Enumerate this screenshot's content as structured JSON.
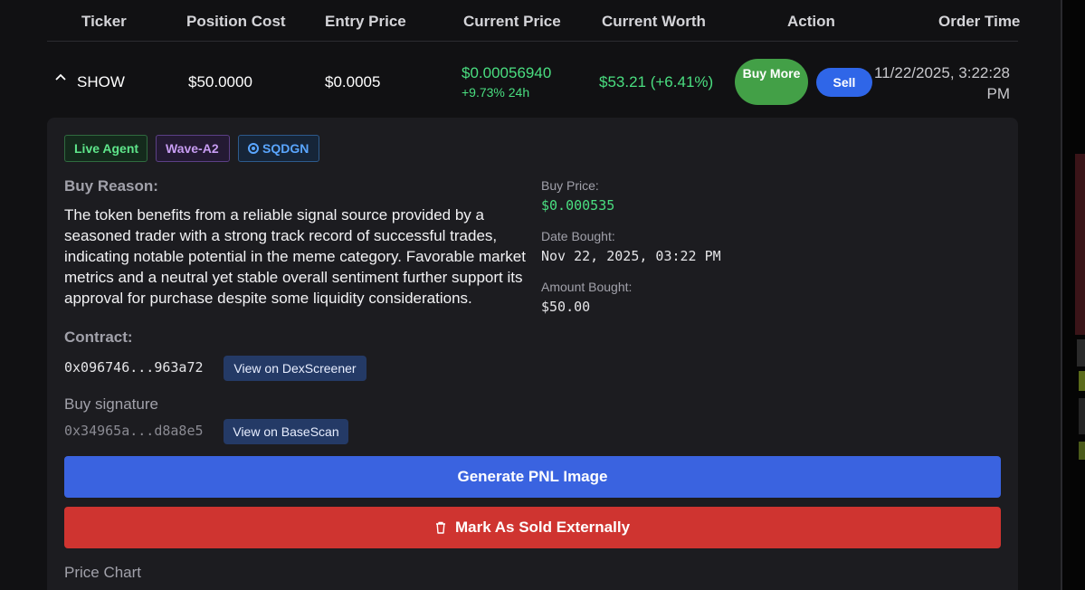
{
  "table": {
    "headers": {
      "ticker": "Ticker",
      "position_cost": "Position Cost",
      "entry_price": "Entry Price",
      "current_price": "Current Price",
      "current_worth": "Current Worth",
      "action": "Action",
      "order_time": "Order Time"
    },
    "row": {
      "ticker": "SHOW",
      "position_cost": "$50.0000",
      "entry_price": "$0.0005",
      "current_price": "$0.00056940",
      "change_24h": "+9.73% 24h",
      "current_worth": "$53.21 (+6.41%)",
      "buy_more_label": "Buy More",
      "sell_label": "Sell",
      "order_time": "11/22/2025, 3:22:28 PM"
    }
  },
  "detail": {
    "badges": {
      "live": "Live Agent",
      "wave": "Wave-A2",
      "sqdgn": "SQDGN"
    },
    "buy_reason_label": "Buy Reason:",
    "buy_reason": "The token benefits from a reliable signal source provided by a seasoned trader with a strong track record of successful trades, indicating notable potential in the meme category. Favorable market metrics and a neutral yet stable overall sentiment further support its approval for purchase despite some liquidity considerations.",
    "buy_price_label": "Buy Price:",
    "buy_price": "$0.000535",
    "date_bought_label": "Date Bought:",
    "date_bought": "Nov 22, 2025, 03:22 PM",
    "amount_bought_label": "Amount Bought:",
    "amount_bought": "$50.00",
    "contract_label": "Contract:",
    "contract": "0x096746...963a72",
    "dexscreener_label": "View on DexScreener",
    "signature_label": "Buy signature",
    "signature": "0x34965a...d8a8e5",
    "basescan_label": "View on BaseScan",
    "pnl_button": "Generate PNL Image",
    "sold_button": "Mark As Sold Externally",
    "price_chart_label": "Price Chart"
  },
  "colors": {
    "positive": "#4ade80",
    "buy_more": "#43a047",
    "sell": "#2f66e8",
    "pnl": "#3a63e0",
    "sold": "#cf3430"
  }
}
